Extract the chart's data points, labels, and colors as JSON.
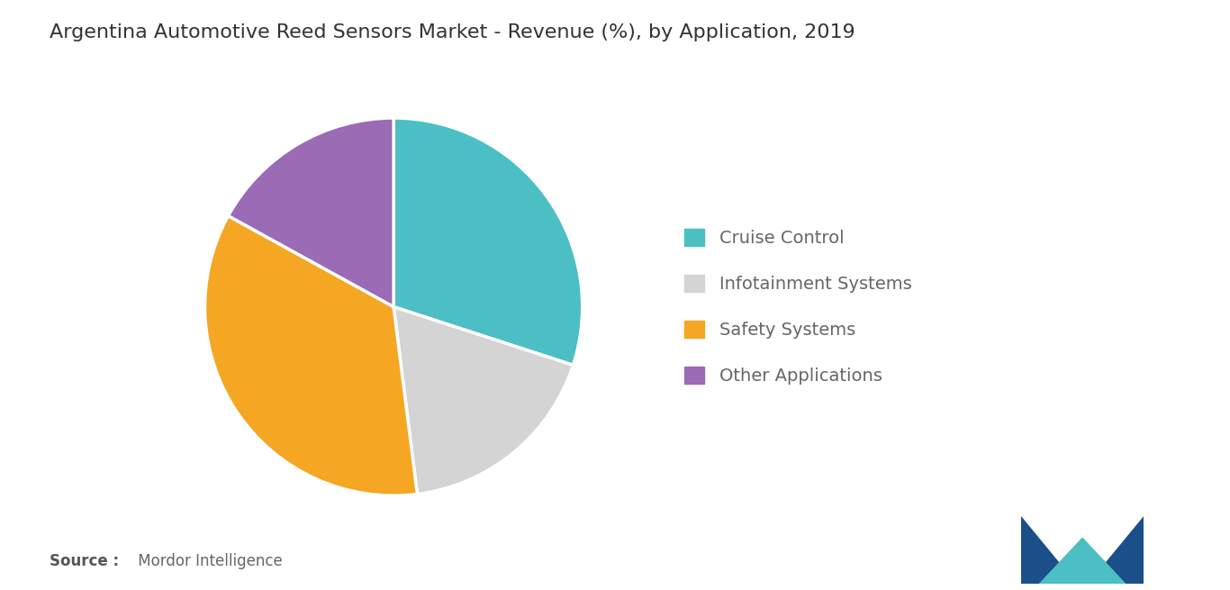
{
  "title": "Argentina Automotive Reed Sensors Market - Revenue (%), by Application, 2019",
  "labels": [
    "Cruise Control",
    "Infotainment Systems",
    "Safety Systems",
    "Other Applications"
  ],
  "values": [
    30,
    18,
    35,
    17
  ],
  "colors": [
    "#4BBFC3",
    "#D4D4D4",
    "#F5A623",
    "#9B6BB5"
  ],
  "startangle": 90,
  "source_bold": "Source :",
  "source_normal": " Mordor Intelligence",
  "background_color": "#FFFFFF",
  "title_fontsize": 16,
  "legend_fontsize": 14,
  "source_fontsize": 12,
  "wedge_linewidth": 2.5,
  "wedge_edgecolor": "#FFFFFF"
}
